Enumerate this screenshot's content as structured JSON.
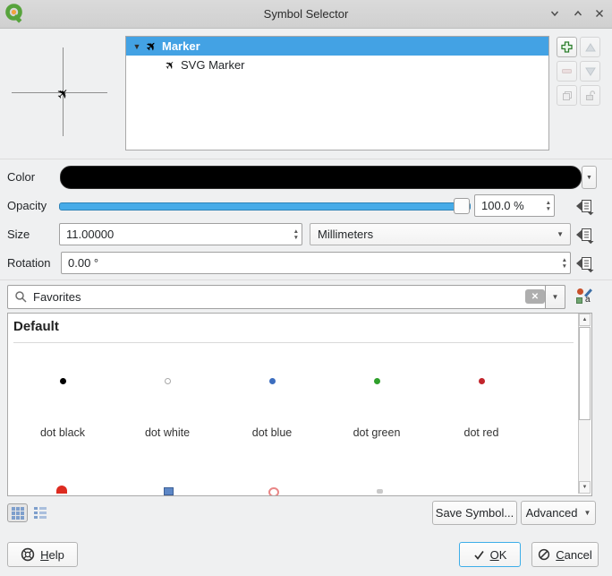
{
  "window": {
    "title": "Symbol Selector"
  },
  "symbol_tree": {
    "items": [
      {
        "label": "Marker",
        "level": 0,
        "selected": true
      },
      {
        "label": "SVG Marker",
        "level": 1,
        "selected": false
      }
    ]
  },
  "properties": {
    "color": {
      "label": "Color",
      "value_hex": "#000000"
    },
    "opacity": {
      "label": "Opacity",
      "value": "100.0 %",
      "percent": 100
    },
    "size": {
      "label": "Size",
      "value": "11.00000",
      "unit": "Millimeters"
    },
    "rotation": {
      "label": "Rotation",
      "value": "0.00 °"
    }
  },
  "search": {
    "value": "Favorites"
  },
  "library": {
    "group_title": "Default",
    "symbols": [
      {
        "name": "dot black",
        "color": "#000000"
      },
      {
        "name": "dot white",
        "color": "#ffffff",
        "border": "#a8a8a8"
      },
      {
        "name": "dot blue",
        "color": "#3d6ebf"
      },
      {
        "name": "dot green",
        "color": "#2fa02c"
      },
      {
        "name": "dot red",
        "color": "#c2252c"
      }
    ]
  },
  "footer": {
    "save_symbol": "Save Symbol...",
    "advanced": "Advanced"
  },
  "dialog": {
    "help": "Help",
    "ok": "OK",
    "cancel": "Cancel"
  },
  "colors": {
    "selection": "#43a2e4",
    "slider": "#47abe8",
    "ok_focus_border": "#3daee9"
  }
}
